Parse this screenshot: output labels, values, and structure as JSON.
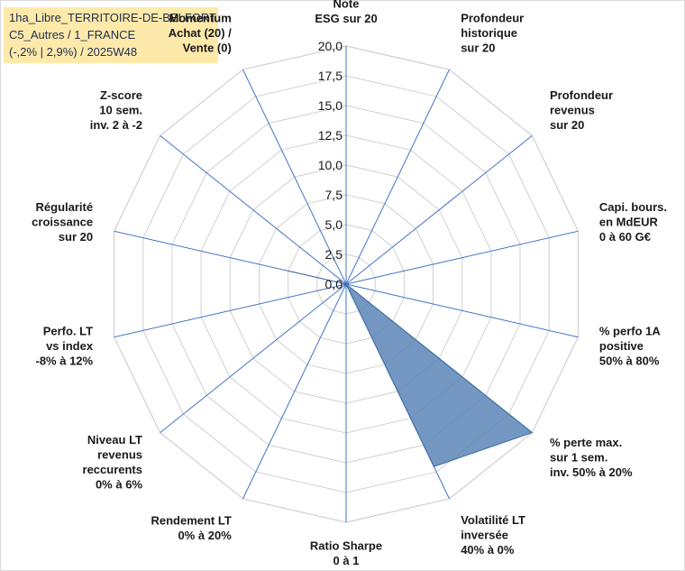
{
  "chart_data": {
    "type": "radar",
    "title_lines": [
      "1ha_Libre_TERRITOIRE-DE-BELFORT",
      "C5_Autres / 1_FRANCE",
      "(-,2% | 2,9%) / 2025W48"
    ],
    "rlim": [
      0,
      20
    ],
    "ticks": [
      "0,0",
      "2,5",
      "5,0",
      "7,5",
      "10,0",
      "12,5",
      "15,0",
      "17,5",
      "20,0"
    ],
    "tick_values": [
      0,
      2.5,
      5,
      7.5,
      10,
      12.5,
      15,
      17.5,
      20
    ],
    "grid": true,
    "axes": [
      {
        "lines": [
          "Note",
          "ESG sur 20"
        ],
        "value": 0
      },
      {
        "lines": [
          "Profondeur",
          "historique",
          "sur 20"
        ],
        "value": 0
      },
      {
        "lines": [
          "Profondeur",
          "revenus",
          "sur 20"
        ],
        "value": 0
      },
      {
        "lines": [
          "Capi. bours.",
          "en MdEUR",
          "0 à 60 G€"
        ],
        "value": 0
      },
      {
        "lines": [
          "% perfo 1A",
          "positive",
          "50% à 80%"
        ],
        "value": 0
      },
      {
        "lines": [
          "% perte max.",
          "sur 1 sem.",
          "inv. 50% à 20%"
        ],
        "value": 20
      },
      {
        "lines": [
          "Volatilité LT",
          "inversée",
          "40% à 0%"
        ],
        "value": 17
      },
      {
        "lines": [
          "Ratio Sharpe",
          "0 à 1"
        ],
        "value": 0
      },
      {
        "lines": [
          "Rendement LT",
          "0% à 20%"
        ],
        "value": 0
      },
      {
        "lines": [
          "Niveau LT",
          "revenus",
          "reccurents",
          "0% à 6%"
        ],
        "value": 0
      },
      {
        "lines": [
          "Perfo. LT",
          "vs index",
          "-8% à 12%"
        ],
        "value": 0
      },
      {
        "lines": [
          "Régularité",
          "croissance",
          "sur 20"
        ],
        "value": 5
      },
      {
        "lines": [
          "Z-score",
          "10 sem.",
          "inv. 2 à -2"
        ],
        "value": 0
      },
      {
        "lines": [
          "Momentum",
          "Achat (20) /",
          "Vente (0)"
        ],
        "value": 0
      }
    ],
    "series": [
      {
        "values": [
          0,
          0,
          0,
          0,
          0,
          20,
          17,
          0,
          0,
          0,
          0,
          5,
          0,
          0
        ]
      }
    ],
    "colors": {
      "fill": "#5b85b5",
      "stroke": "#3f6a9e",
      "grid": "#d0d0d0",
      "axis": "#4472c4",
      "label": "#1a1a1a",
      "title_bg": "#fde9a9"
    }
  }
}
